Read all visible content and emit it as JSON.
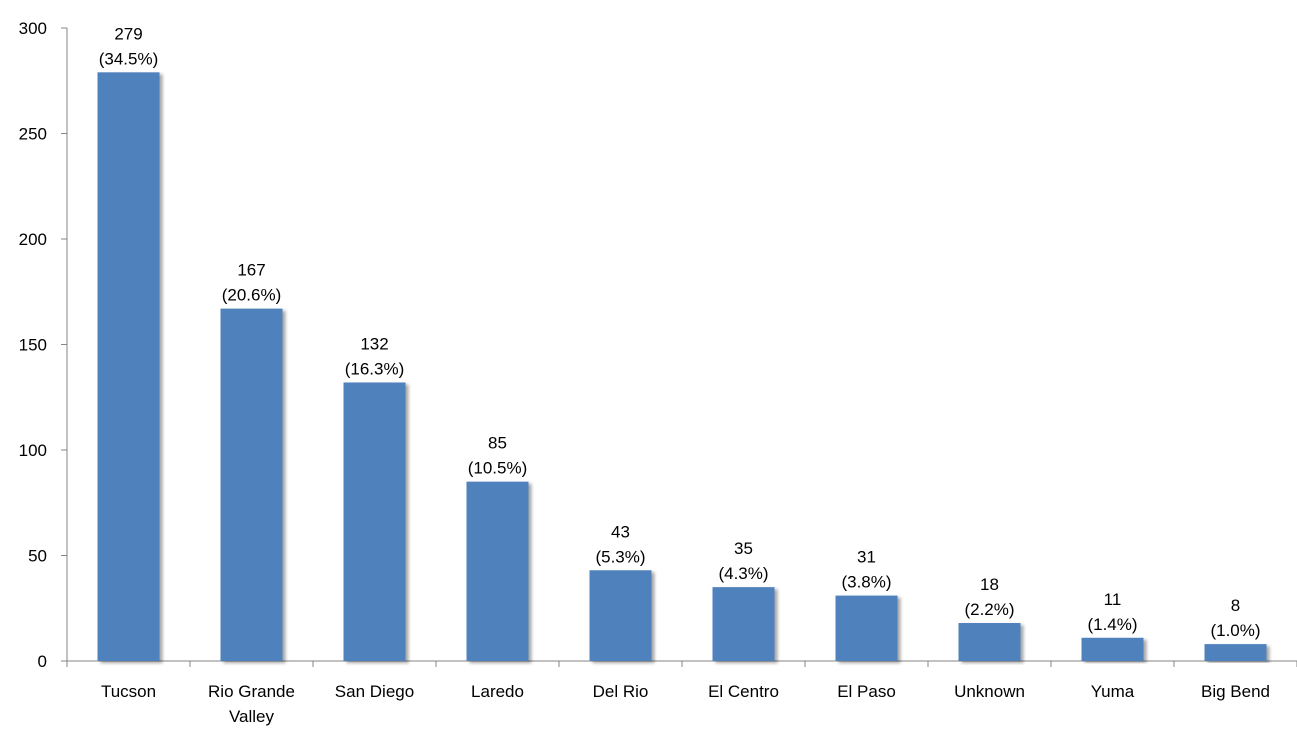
{
  "chart_data": {
    "type": "bar",
    "categories": [
      [
        "Tucson"
      ],
      [
        "Rio Grande",
        "Valley"
      ],
      [
        "San Diego"
      ],
      [
        "Laredo"
      ],
      [
        "Del Rio"
      ],
      [
        "El Centro"
      ],
      [
        "El Paso"
      ],
      [
        "Unknown"
      ],
      [
        "Yuma"
      ],
      [
        "Big Bend"
      ]
    ],
    "values": [
      279,
      167,
      132,
      85,
      43,
      35,
      31,
      18,
      11,
      8
    ],
    "percent_labels": [
      "(34.5%)",
      "(20.6%)",
      "(16.3%)",
      "(10.5%)",
      "(5.3%)",
      "(4.3%)",
      "(3.8%)",
      "(2.2%)",
      "(1.4%)",
      "(1.0%)"
    ],
    "ylim": [
      0,
      300
    ],
    "yticks": [
      0,
      50,
      100,
      150,
      200,
      250,
      300
    ],
    "title": "",
    "xlabel": "",
    "ylabel": "",
    "grid": false,
    "legend": "none",
    "bar_color": "#4F81BD"
  }
}
